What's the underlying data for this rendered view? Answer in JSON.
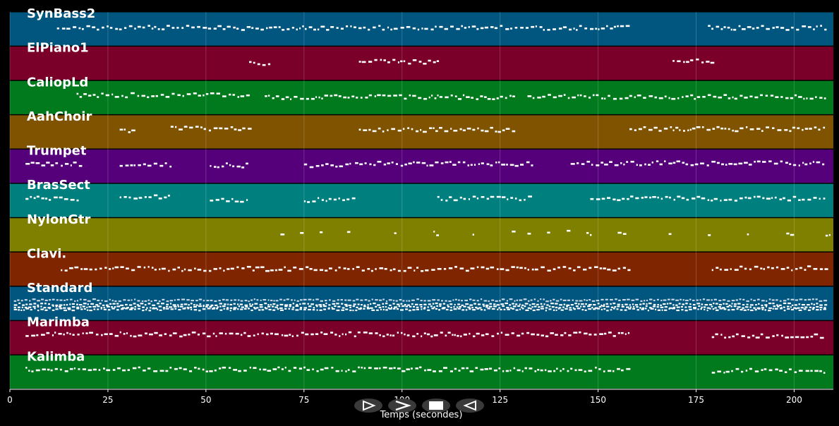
{
  "chart_data": {
    "type": "piano-roll",
    "xlabel": "Temps (secondes)",
    "xlim": [
      0,
      210
    ],
    "xticks": [
      0,
      25,
      50,
      75,
      100,
      125,
      150,
      175,
      200
    ],
    "grid": true,
    "tracks": [
      {
        "name": "SynBass2",
        "color": "#00567f",
        "activity": [
          [
            12,
            158
          ],
          [
            178,
            208
          ]
        ]
      },
      {
        "name": "ElPiano1",
        "color": "#7a0029",
        "activity": [
          [
            61,
            66
          ],
          [
            89,
            109
          ],
          [
            169,
            179
          ]
        ]
      },
      {
        "name": "CaliopLd",
        "color": "#007a1c",
        "activity": [
          [
            17,
            61
          ],
          [
            65,
            129
          ],
          [
            132,
            208
          ]
        ]
      },
      {
        "name": "AahChoir",
        "color": "#7f5300",
        "activity": [
          [
            28,
            32
          ],
          [
            41,
            61
          ],
          [
            89,
            129
          ],
          [
            158,
            208
          ]
        ]
      },
      {
        "name": "Trumpet",
        "color": "#55007a",
        "activity": [
          [
            4,
            18
          ],
          [
            28,
            41
          ],
          [
            51,
            61
          ],
          [
            75,
            87
          ],
          [
            88,
            133
          ],
          [
            143,
            208
          ]
        ]
      },
      {
        "name": "BrasSect",
        "color": "#007f7f",
        "activity": [
          [
            4,
            18
          ],
          [
            28,
            41
          ],
          [
            51,
            61
          ],
          [
            75,
            88
          ],
          [
            109,
            133
          ],
          [
            148,
            208
          ]
        ]
      },
      {
        "name": "NylonGtr",
        "color": "#7f7f00",
        "activity": [
          [
            69,
            70
          ],
          [
            74,
            75
          ],
          [
            79,
            80
          ],
          [
            86,
            87
          ],
          [
            98,
            99
          ],
          [
            108,
            109
          ],
          [
            118,
            119
          ],
          [
            128,
            129
          ],
          [
            132,
            133
          ],
          [
            137,
            138
          ],
          [
            142,
            143
          ],
          [
            147,
            148
          ],
          [
            155,
            157
          ],
          [
            168,
            169
          ],
          [
            178,
            179
          ],
          [
            188,
            189
          ],
          [
            198,
            199
          ],
          [
            208,
            209
          ]
        ]
      },
      {
        "name": "Clavi.",
        "color": "#7f2600",
        "activity": [
          [
            13,
            158
          ],
          [
            179,
            208
          ]
        ]
      },
      {
        "name": "Standard",
        "color": "#00567f",
        "activity": [
          [
            1,
            208
          ]
        ]
      },
      {
        "name": "Marimba",
        "color": "#7a0029",
        "activity": [
          [
            4,
            158
          ],
          [
            179,
            208
          ]
        ]
      },
      {
        "name": "Kalimba",
        "color": "#007a1c",
        "activity": [
          [
            4,
            158
          ],
          [
            179,
            208
          ]
        ]
      }
    ]
  },
  "controls": [
    {
      "name": "play-button",
      "glyph": "play-outline-icon"
    },
    {
      "name": "fast-forward-button",
      "glyph": "chevron-right-icon"
    },
    {
      "name": "stop-button",
      "glyph": "stop-icon"
    },
    {
      "name": "rewind-button",
      "glyph": "play-reverse-icon"
    }
  ]
}
